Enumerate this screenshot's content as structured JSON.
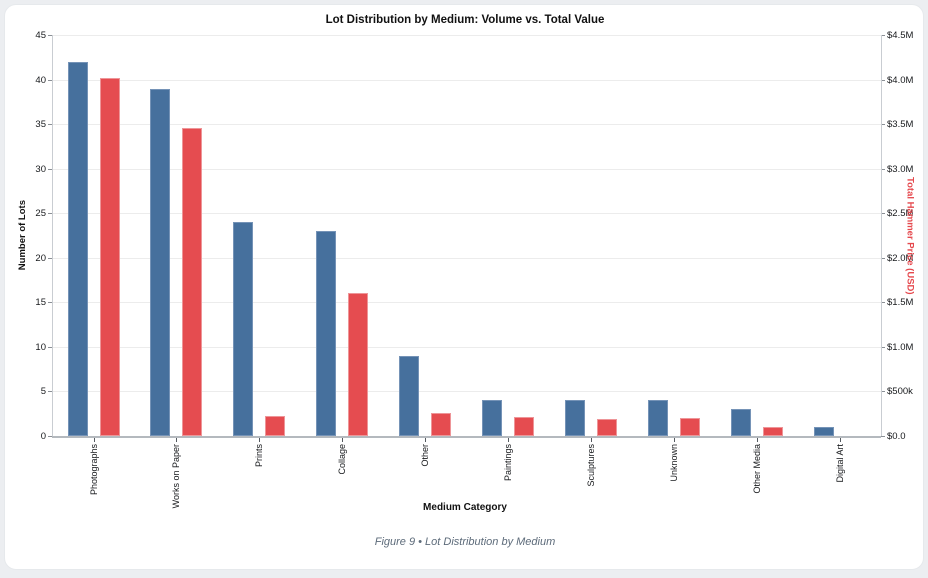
{
  "page": {
    "background_color": "#eceef1",
    "card_background_color": "#ffffff"
  },
  "chart": {
    "title": "Lot Distribution by Medium: Volume vs. Total Value",
    "x_axis_label": "Medium Category",
    "y_left_axis_label": "Number of Lots",
    "y_right_axis_label": "Total Hammer Price (USD)",
    "caption": "Figure 9 • Lot Distribution by Medium"
  },
  "chart_data": {
    "type": "bar",
    "title": "Lot Distribution by Medium: Volume vs. Total Value",
    "xlabel": "Medium Category",
    "ylabel_left": "Number of Lots",
    "ylabel_right": "Total Hammer Price (USD)",
    "categories": [
      "Photographs",
      "Works on Paper",
      "Prints",
      "Collage",
      "Other",
      "Paintings",
      "Sculptures",
      "Unknown",
      "Other Media",
      "Digital Art"
    ],
    "series": [
      {
        "name": "Number of Lots",
        "axis": "left",
        "color": "#46709d",
        "values": [
          42,
          39,
          24,
          23,
          9,
          4,
          4,
          4,
          3,
          1
        ]
      },
      {
        "name": "Total Hammer Price (USD)",
        "axis": "right",
        "color": "#e54c50",
        "values": [
          4020000,
          3460000,
          230000,
          1600000,
          255000,
          210000,
          195000,
          200000,
          100000,
          0
        ]
      }
    ],
    "left_axis": {
      "min": 0,
      "max": 45,
      "step": 5,
      "tick_labels": [
        "45",
        "40",
        "35",
        "30",
        "25",
        "20",
        "15",
        "10",
        "5",
        "0"
      ]
    },
    "right_axis": {
      "min": 0,
      "max": 4500000,
      "tick_labels": [
        "$4.5M",
        "$4.0M",
        "$3.5M",
        "$3.0M",
        "$2.5M",
        "$2.0M",
        "$1.5M",
        "$1.0M",
        "$500k",
        "$0.0"
      ]
    },
    "grid": true,
    "legend": "none"
  }
}
